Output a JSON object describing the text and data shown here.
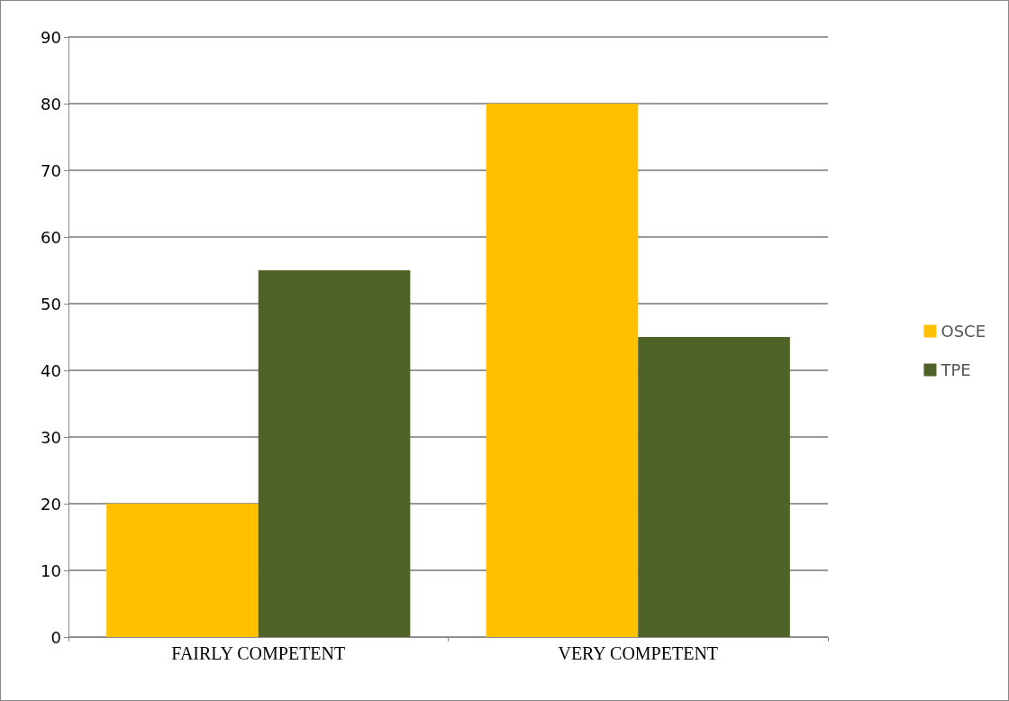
{
  "chart_data": {
    "type": "bar",
    "categories": [
      "FAIRLY COMPETENT",
      "VERY COMPETENT"
    ],
    "series": [
      {
        "name": "OSCE",
        "color": "#ffc000",
        "values": [
          20,
          80
        ]
      },
      {
        "name": "TPE",
        "color": "#4f6228",
        "values": [
          55,
          45
        ]
      }
    ],
    "ylim": [
      0,
      90
    ],
    "yticks": [
      0,
      10,
      20,
      30,
      40,
      50,
      60,
      70,
      80,
      90
    ],
    "grid": "y",
    "legend": "right"
  }
}
